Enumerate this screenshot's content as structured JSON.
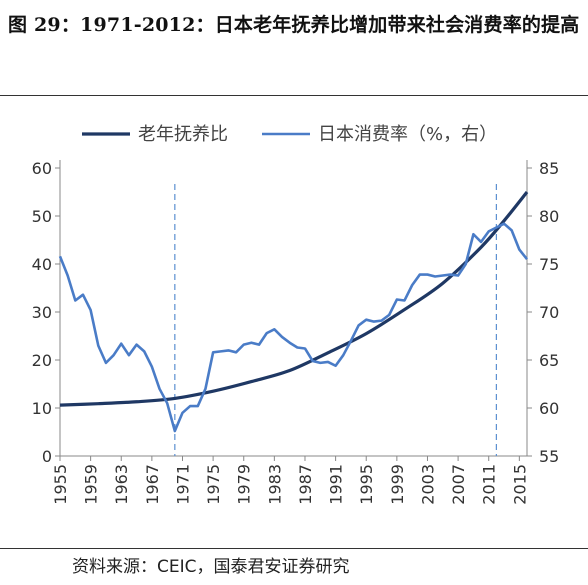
{
  "figure": {
    "title": "图 29：1971-2012：日本老年抚养比增加带来社会消费率的提高",
    "source": "资料来源：CEIC，国泰君安证券研究"
  },
  "colors": {
    "dependency": "#1f3864",
    "consumption": "#4a7cc7",
    "refline": "#5b8fd0",
    "axis": "#888888"
  },
  "chart_data": {
    "type": "line",
    "legend_position": "top",
    "grid": false,
    "x_axis": {
      "ticks": [
        "1955",
        "1959",
        "1963",
        "1967",
        "1971",
        "1975",
        "1979",
        "1983",
        "1987",
        "1991",
        "1995",
        "1999",
        "2003",
        "2007",
        "2011",
        "2015"
      ],
      "range": [
        1955,
        2016
      ]
    },
    "y_left": {
      "range": [
        0,
        60
      ],
      "ticks": [
        "0",
        "10",
        "20",
        "30",
        "40",
        "50",
        "60"
      ]
    },
    "y_right": {
      "range": [
        55,
        85
      ],
      "ticks": [
        "55",
        "60",
        "65",
        "70",
        "75",
        "80",
        "85"
      ]
    },
    "reference_lines_x": [
      1970,
      2012
    ],
    "series": [
      {
        "name": "老年抚养比",
        "axis": "left",
        "x": [
          1955,
          1960,
          1965,
          1970,
          1975,
          1980,
          1985,
          1990,
          1995,
          2000,
          2005,
          2010,
          2013,
          2016
        ],
        "y": [
          10.6,
          10.9,
          11.3,
          12.0,
          13.5,
          15.5,
          17.8,
          21.5,
          25.5,
          30.5,
          36.0,
          43.5,
          49.0,
          55.0
        ]
      },
      {
        "name": "日本消费率（%，右）",
        "axis": "right",
        "x": [
          1955,
          1956,
          1957,
          1958,
          1959,
          1960,
          1961,
          1962,
          1963,
          1964,
          1965,
          1966,
          1967,
          1968,
          1969,
          1970,
          1971,
          1972,
          1973,
          1974,
          1975,
          1976,
          1977,
          1978,
          1979,
          1980,
          1981,
          1982,
          1983,
          1984,
          1985,
          1986,
          1987,
          1988,
          1989,
          1990,
          1991,
          1992,
          1993,
          1994,
          1995,
          1996,
          1997,
          1998,
          1999,
          2000,
          2001,
          2002,
          2003,
          2004,
          2005,
          2006,
          2007,
          2008,
          2009,
          2010,
          2011,
          2012,
          2013,
          2014,
          2015,
          2016
        ],
        "y": [
          75.8,
          73.8,
          71.2,
          71.8,
          70.2,
          66.5,
          64.7,
          65.5,
          66.7,
          65.5,
          66.6,
          65.9,
          64.3,
          62.0,
          60.5,
          57.6,
          59.5,
          60.2,
          60.2,
          62.0,
          65.8,
          65.9,
          66.0,
          65.8,
          66.6,
          66.8,
          66.6,
          67.8,
          68.2,
          67.4,
          66.8,
          66.3,
          66.2,
          64.9,
          64.7,
          64.8,
          64.4,
          65.5,
          67.0,
          68.6,
          69.2,
          69.0,
          69.1,
          69.7,
          71.3,
          71.2,
          72.8,
          73.9,
          73.9,
          73.7,
          73.8,
          73.9,
          73.8,
          75.0,
          78.1,
          77.3,
          78.4,
          78.8,
          79.2,
          78.5,
          76.5,
          75.5
        ]
      }
    ]
  }
}
